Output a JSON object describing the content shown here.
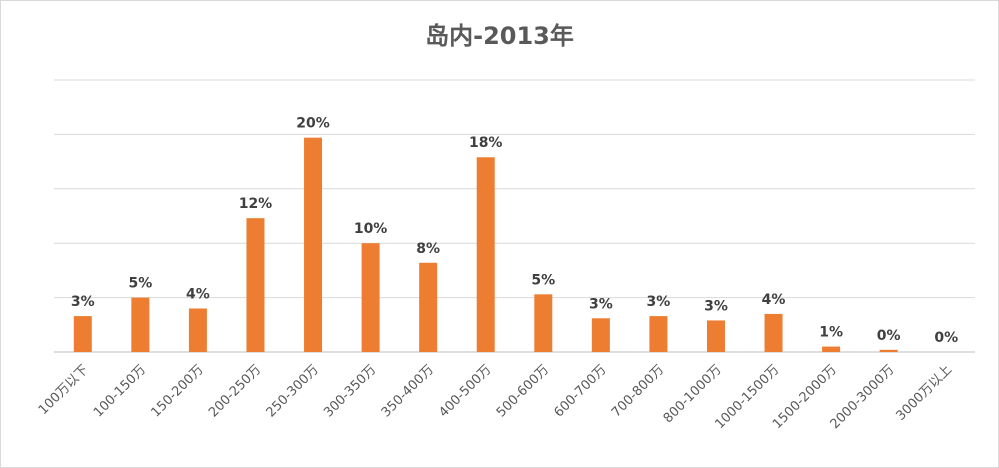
{
  "chart_data": {
    "type": "bar",
    "title": "岛内-2013年",
    "xlabel": "",
    "ylabel": "",
    "ylim": [
      0,
      25
    ],
    "grid": true,
    "legend": "none",
    "bar_color": "#ED7D31",
    "categories": [
      "100万以下",
      "100-150万",
      "150-200万",
      "200-250万",
      "250-300万",
      "300-350万",
      "350-400万",
      "400-500万",
      "500-600万",
      "600-700万",
      "700-800万",
      "800-1000万",
      "1000-1500万",
      "1500-2000万",
      "2000-3000万",
      "3000万以上"
    ],
    "values": [
      3.3,
      5.0,
      4.0,
      12.3,
      19.7,
      10.0,
      8.2,
      17.9,
      5.3,
      3.1,
      3.3,
      2.9,
      3.5,
      0.5,
      0.2,
      0
    ],
    "labels": [
      "3%",
      "5%",
      "4%",
      "12%",
      "20%",
      "10%",
      "8%",
      "18%",
      "5%",
      "3%",
      "3%",
      "3%",
      "4%",
      "1%",
      "0%",
      "0%"
    ]
  }
}
